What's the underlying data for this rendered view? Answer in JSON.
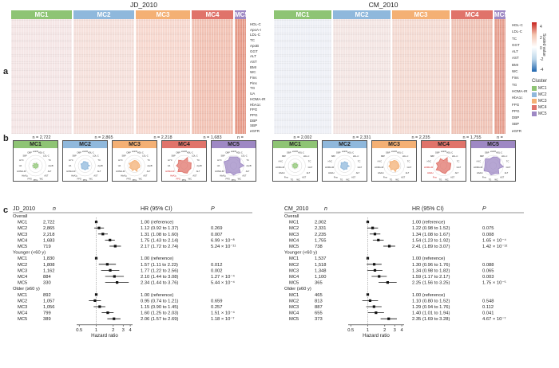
{
  "panel_labels": {
    "a": "a",
    "b": "b",
    "c": "c"
  },
  "colors": {
    "mc1": "#8ec474",
    "mc2": "#8fb8dc",
    "mc3": "#f4b074",
    "mc4": "#e0736a",
    "mc5": "#9e88c4",
    "high": "#c7221e",
    "low": "#1f65ad"
  },
  "heatmap": {
    "left_title": "JD_2010",
    "right_title": "CM_2010",
    "clusters": [
      "MC1",
      "MC2",
      "MC3",
      "MC4",
      "MC5"
    ],
    "left_n": [
      "n = 2,722",
      "n = 2,865",
      "n = 2,218",
      "n = 1,683",
      "n = 719"
    ],
    "right_n": [
      "n = 2,002",
      "n = 2,331",
      "n = 2,235",
      "n = 1,755",
      "n = 738"
    ],
    "variables": [
      "HDL-C",
      "ApoA-I",
      "LDL-C",
      "TC",
      "ApoB",
      "GGT",
      "ALT",
      "AST",
      "BMI",
      "WC",
      "Fins",
      "Pins",
      "TG",
      "UA",
      "HOMA-IR",
      "HbA1c",
      "FPG",
      "PPG",
      "DBP",
      "SBP",
      "eGFR"
    ],
    "variables_right": [
      "HDL-C",
      "LDL-C",
      "TC",
      "GGT",
      "ALT",
      "AST",
      "BMI",
      "WC",
      "Fins",
      "TG",
      "HOMA-IR",
      "HbA1c",
      "FPG",
      "PPG",
      "DBP",
      "SBP",
      "eGFR"
    ],
    "legend_title": "Scaled value",
    "legend_ticks": [
      "4",
      "2",
      "0",
      "-2",
      "-4"
    ],
    "cluster_legend_title": "Cluster"
  },
  "radar": {
    "left": [
      {
        "name": "MC1",
        "labels": [
          "eGFR",
          "HDL-C",
          "LDL-C",
          "TC",
          "ApoB",
          "ALT",
          "AST",
          "WC",
          "PPG",
          "FPG",
          "HbA1c",
          "HOMA-IR",
          "UA",
          "HYC",
          "SBP",
          "DBP"
        ]
      },
      {
        "name": "MC2",
        "labels": [
          "eGFR",
          "HDL-C",
          "LDL-C",
          "TC",
          "ApoB",
          "ALT",
          "AST",
          "WC",
          "PPG",
          "FPG",
          "HbA1c",
          "HOMA-IR",
          "UA",
          "HYC",
          "SBP",
          "DBP"
        ]
      },
      {
        "name": "MC3",
        "labels": [
          "eGFR",
          "HDL-C",
          "LDL-C",
          "TC",
          "ApoB",
          "ALT",
          "AST",
          "WC",
          "PPG",
          "FPG",
          "HbA1c",
          "HOMA-IR",
          "UA",
          "HYC",
          "SBP",
          "DBP"
        ]
      },
      {
        "name": "MC4",
        "labels": [
          "eGFR",
          "HDL-C",
          "LDL-C",
          "TC",
          "ApoB",
          "ALT",
          "AST",
          "WC",
          "PPG",
          "FPG",
          "HbA1c",
          "HOMA-IR",
          "UA",
          "HYC",
          "SBP",
          "DBP"
        ]
      },
      {
        "name": "MC5",
        "labels": [
          "eGFR",
          "HDL-C",
          "LDL-C",
          "TC",
          "ApoB",
          "ALT",
          "AST",
          "WC",
          "PPG",
          "FPG",
          "HbA1c",
          "HOMA-IR",
          "UA",
          "HYC",
          "SBP",
          "DBP"
        ]
      }
    ],
    "right": [
      {
        "name": "MC1",
        "labels": [
          "eGFR",
          "HDL-C",
          "LDL-C",
          "TC",
          "GGT",
          "ALT",
          "AST",
          "WC",
          "TG",
          "Fins",
          "HbA1c",
          "HOMA-IR",
          "HYC",
          "SBP",
          "DBP"
        ]
      },
      {
        "name": "MC2",
        "labels": [
          "eGFR",
          "HDL-C",
          "LDL-C",
          "TC",
          "GGT",
          "ALT",
          "AST",
          "WC",
          "TG",
          "Fins",
          "HbA1c",
          "HOMA-IR",
          "HYC",
          "SBP",
          "DBP"
        ]
      },
      {
        "name": "MC3",
        "labels": [
          "eGFR",
          "HDL-C",
          "LDL-C",
          "TC",
          "GGT",
          "ALT",
          "AST",
          "WC",
          "TG",
          "Fins",
          "HbA1c",
          "HOMA-IR",
          "HYC",
          "SBP",
          "DBP"
        ]
      },
      {
        "name": "MC4",
        "labels": [
          "eGFR",
          "HDL-C",
          "LDL-C",
          "TC",
          "GGT",
          "ALT",
          "AST",
          "WC",
          "TG",
          "Fins",
          "HbA1c",
          "HOMA-IR",
          "HYC",
          "SBP",
          "DBP"
        ]
      },
      {
        "name": "MC5",
        "labels": [
          "eGFR",
          "HDL-C",
          "LDL-C",
          "TC",
          "GGT",
          "ALT",
          "AST",
          "WC",
          "TG",
          "Fins",
          "HbA1c",
          "HOMA-IR",
          "HYC",
          "SBP",
          "DBP"
        ]
      }
    ]
  },
  "forest": {
    "left": {
      "title": "JD_2010",
      "n_header": "n",
      "hr_header": "HR (95% CI)",
      "p_header": "P",
      "groups": [
        {
          "label": "Overall",
          "rows": [
            {
              "name": "MC1",
              "n": "2,722",
              "hr_text": "1.00 (reference)",
              "p": "",
              "hr": 1,
              "lo": 1,
              "hi": 1
            },
            {
              "name": "MC2",
              "n": "2,865",
              "hr_text": "1.12 (0.92 to 1.37)",
              "p": "0.269",
              "hr": 1.12,
              "lo": 0.92,
              "hi": 1.37
            },
            {
              "name": "MC3",
              "n": "2,218",
              "hr_text": "1.31 (1.08 to 1.60)",
              "p": "0.007",
              "hr": 1.31,
              "lo": 1.08,
              "hi": 1.6
            },
            {
              "name": "MC4",
              "n": "1,683",
              "hr_text": "1.75 (1.43 to 2.14)",
              "p": "6.99 × 10⁻⁸",
              "hr": 1.75,
              "lo": 1.43,
              "hi": 2.14
            },
            {
              "name": "MC5",
              "n": "719",
              "hr_text": "2.17 (1.72 to 2.74)",
              "p": "5.24 × 10⁻¹¹",
              "hr": 2.17,
              "lo": 1.72,
              "hi": 2.74
            }
          ]
        },
        {
          "label": "Younger (<60 y)",
          "rows": [
            {
              "name": "MC1",
              "n": "1,830",
              "hr_text": "1.00 (reference)",
              "p": "",
              "hr": 1,
              "lo": 1,
              "hi": 1
            },
            {
              "name": "MC2",
              "n": "1,808",
              "hr_text": "1.57 (1.11 to 2.23)",
              "p": "0.012",
              "hr": 1.57,
              "lo": 1.11,
              "hi": 2.23
            },
            {
              "name": "MC3",
              "n": "1,162",
              "hr_text": "1.77 (1.22 to 2.56)",
              "p": "0.002",
              "hr": 1.77,
              "lo": 1.22,
              "hi": 2.56
            },
            {
              "name": "MC4",
              "n": "884",
              "hr_text": "2.10 (1.44 to 3.08)",
              "p": "1.27 × 10⁻⁴",
              "hr": 2.1,
              "lo": 1.44,
              "hi": 3.08
            },
            {
              "name": "MC5",
              "n": "330",
              "hr_text": "2.34 (1.44 to 3.76)",
              "p": "5.44 × 10⁻⁴",
              "hr": 2.34,
              "lo": 1.44,
              "hi": 3.76
            }
          ]
        },
        {
          "label": "Older (≥60 y)",
          "rows": [
            {
              "name": "MC1",
              "n": "892",
              "hr_text": "1.00 (reference)",
              "p": "",
              "hr": 1,
              "lo": 1,
              "hi": 1
            },
            {
              "name": "MC2",
              "n": "1,057",
              "hr_text": "0.95 (0.74 to 1.21)",
              "p": "0.659",
              "hr": 0.95,
              "lo": 0.74,
              "hi": 1.21
            },
            {
              "name": "MC3",
              "n": "1,056",
              "hr_text": "1.15 (0.90 to 1.45)",
              "p": "0.257",
              "hr": 1.15,
              "lo": 0.9,
              "hi": 1.45
            },
            {
              "name": "MC4",
              "n": "799",
              "hr_text": "1.60 (1.25 to 2.03)",
              "p": "1.51 × 10⁻⁴",
              "hr": 1.6,
              "lo": 1.25,
              "hi": 2.03
            },
            {
              "name": "MC5",
              "n": "389",
              "hr_text": "2.06 (1.57 to 2.69)",
              "p": "1.18 × 10⁻⁷",
              "hr": 2.06,
              "lo": 1.57,
              "hi": 2.69
            }
          ]
        }
      ],
      "xticks": [
        "0.5",
        "1",
        "2",
        "3",
        "4"
      ],
      "xlabel": "Hazard ratio"
    },
    "right": {
      "title": "CM_2010",
      "n_header": "n",
      "hr_header": "HR (95% CI)",
      "p_header": "P",
      "groups": [
        {
          "label": "Overall",
          "rows": [
            {
              "name": "MC1",
              "n": "2,002",
              "hr_text": "1.00 (reference)",
              "p": "",
              "hr": 1,
              "lo": 1,
              "hi": 1
            },
            {
              "name": "MC2",
              "n": "2,331",
              "hr_text": "1.22 (0.98 to 1.52)",
              "p": "0.075",
              "hr": 1.22,
              "lo": 0.98,
              "hi": 1.52
            },
            {
              "name": "MC3",
              "n": "2,235",
              "hr_text": "1.34 (1.08 to 1.67)",
              "p": "0.008",
              "hr": 1.34,
              "lo": 1.08,
              "hi": 1.67
            },
            {
              "name": "MC4",
              "n": "1,755",
              "hr_text": "1.54 (1.23 to 1.92)",
              "p": "1.65 × 10⁻⁴",
              "hr": 1.54,
              "lo": 1.23,
              "hi": 1.92
            },
            {
              "name": "MC5",
              "n": "738",
              "hr_text": "2.41 (1.89 to 3.07)",
              "p": "1.42 × 10⁻¹²",
              "hr": 2.41,
              "lo": 1.89,
              "hi": 3.07
            }
          ]
        },
        {
          "label": "Younger (<60 y)",
          "rows": [
            {
              "name": "MC1",
              "n": "1,537",
              "hr_text": "1.00 (reference)",
              "p": "",
              "hr": 1,
              "lo": 1,
              "hi": 1
            },
            {
              "name": "MC2",
              "n": "1,518",
              "hr_text": "1.30 (0.96 to 1.76)",
              "p": "0.088",
              "hr": 1.3,
              "lo": 0.96,
              "hi": 1.76
            },
            {
              "name": "MC3",
              "n": "1,348",
              "hr_text": "1.34 (0.98 to 1.82)",
              "p": "0.065",
              "hr": 1.34,
              "lo": 0.98,
              "hi": 1.82
            },
            {
              "name": "MC4",
              "n": "1,100",
              "hr_text": "1.59 (1.17 to 2.17)",
              "p": "0.003",
              "hr": 1.59,
              "lo": 1.17,
              "hi": 2.17
            },
            {
              "name": "MC5",
              "n": "365",
              "hr_text": "2.25 (1.56 to 3.25)",
              "p": "1.75 × 10⁻⁵",
              "hr": 2.25,
              "lo": 1.56,
              "hi": 3.25
            }
          ]
        },
        {
          "label": "Older (≥60 y)",
          "rows": [
            {
              "name": "MC1",
              "n": "465",
              "hr_text": "1.00 (reference)",
              "p": "",
              "hr": 1,
              "lo": 1,
              "hi": 1
            },
            {
              "name": "MC2",
              "n": "813",
              "hr_text": "1.10 (0.80 to 1.52)",
              "p": "0.548",
              "hr": 1.1,
              "lo": 0.8,
              "hi": 1.52
            },
            {
              "name": "MC3",
              "n": "887",
              "hr_text": "1.29 (0.94 to 1.76)",
              "p": "0.112",
              "hr": 1.29,
              "lo": 0.94,
              "hi": 1.76
            },
            {
              "name": "MC4",
              "n": "655",
              "hr_text": "1.40 (1.01 to 1.94)",
              "p": "0.041",
              "hr": 1.4,
              "lo": 1.01,
              "hi": 1.94
            },
            {
              "name": "MC5",
              "n": "373",
              "hr_text": "2.35 (1.69 to 3.28)",
              "p": "4.67 × 10⁻⁷",
              "hr": 2.35,
              "lo": 1.69,
              "hi": 3.28
            }
          ]
        }
      ],
      "xticks": [
        "0.5",
        "1",
        "2",
        "3",
        "4"
      ],
      "xlabel": "Hazard ratio"
    }
  }
}
